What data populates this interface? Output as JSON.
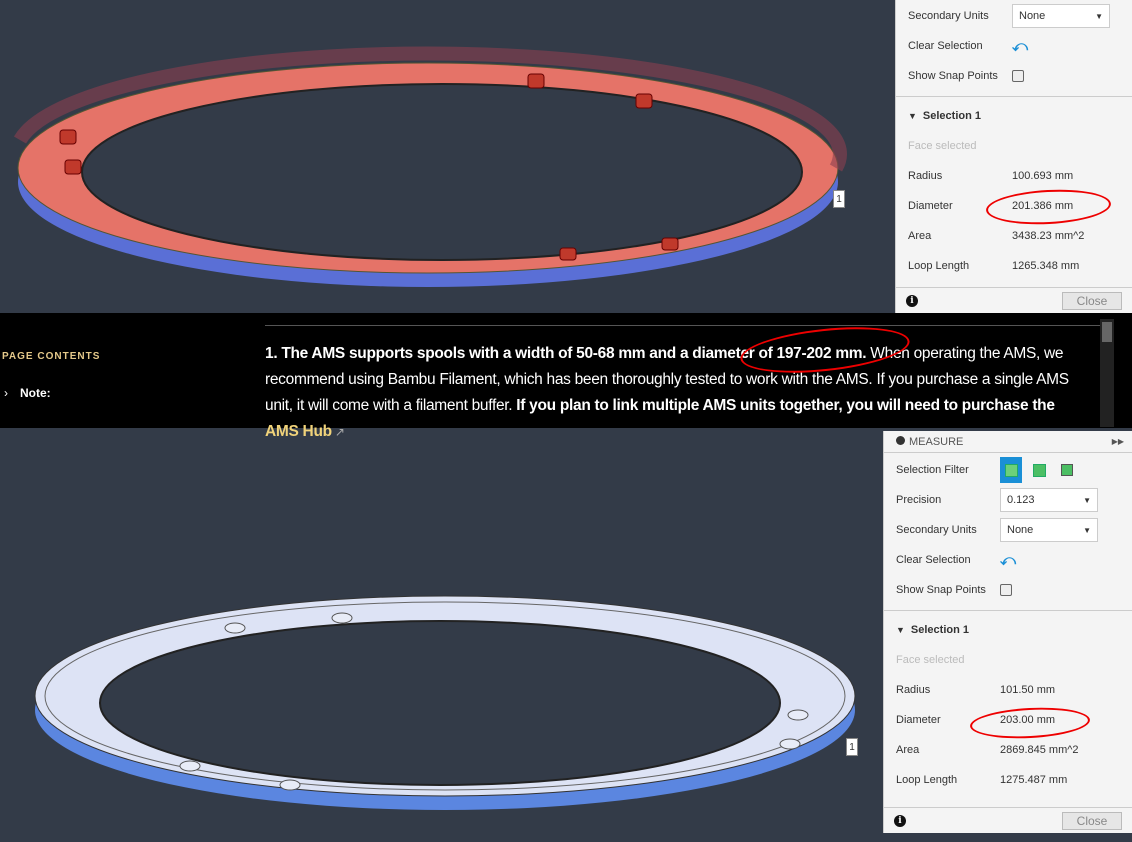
{
  "top_panel": {
    "secondary_units_label": "Secondary Units",
    "secondary_units_value": "None",
    "clear_selection_label": "Clear Selection",
    "show_snap_points_label": "Show Snap Points",
    "selection_title": "Selection 1",
    "face_selected": "Face selected",
    "radius_label": "Radius",
    "radius": "100.693 mm",
    "diameter_label": "Diameter",
    "diameter": "201.386 mm",
    "area_label": "Area",
    "area": "3438.23 mm^2",
    "loop_label": "Loop Length",
    "loop": "1265.348 mm",
    "close": "Close",
    "face_tag": "1"
  },
  "doc": {
    "page_contents": "PAGE CONTENTS",
    "note": "Note:",
    "p1_bold": "1. The AMS supports spools with a width of 50-68 mm and a diameter of 197-202 mm.",
    "p1_rest": " When operating the AMS, we recommend using Bambu Filament, which has been thoroughly tested to work with the AMS. If you purchase a single AMS unit, it will come with a filament buffer. ",
    "p2_bold": "If you plan to link multiple AMS units together, you will need to purchase the ",
    "link": "AMS Hub"
  },
  "bottom_panel": {
    "title": "MEASURE",
    "selection_filter_label": "Selection Filter",
    "precision_label": "Precision",
    "precision_value": "0.123",
    "secondary_units_label": "Secondary Units",
    "secondary_units_value": "None",
    "clear_selection_label": "Clear Selection",
    "show_snap_points_label": "Show Snap Points",
    "selection_title": "Selection 1",
    "face_selected": "Face selected",
    "radius_label": "Radius",
    "radius": "101.50 mm",
    "diameter_label": "Diameter",
    "diameter": "203.00 mm",
    "area_label": "Area",
    "area": "2869.845 mm^2",
    "loop_label": "Loop Length",
    "loop": "1275.487 mm",
    "close": "Close",
    "face_tag": "1"
  },
  "colors": {
    "top_ring": "#e57368",
    "ring_side": "#5a6fd6",
    "bottom_ring": "#dde3f5",
    "annotation": "#e00000",
    "accent": "#1a8fd6"
  }
}
